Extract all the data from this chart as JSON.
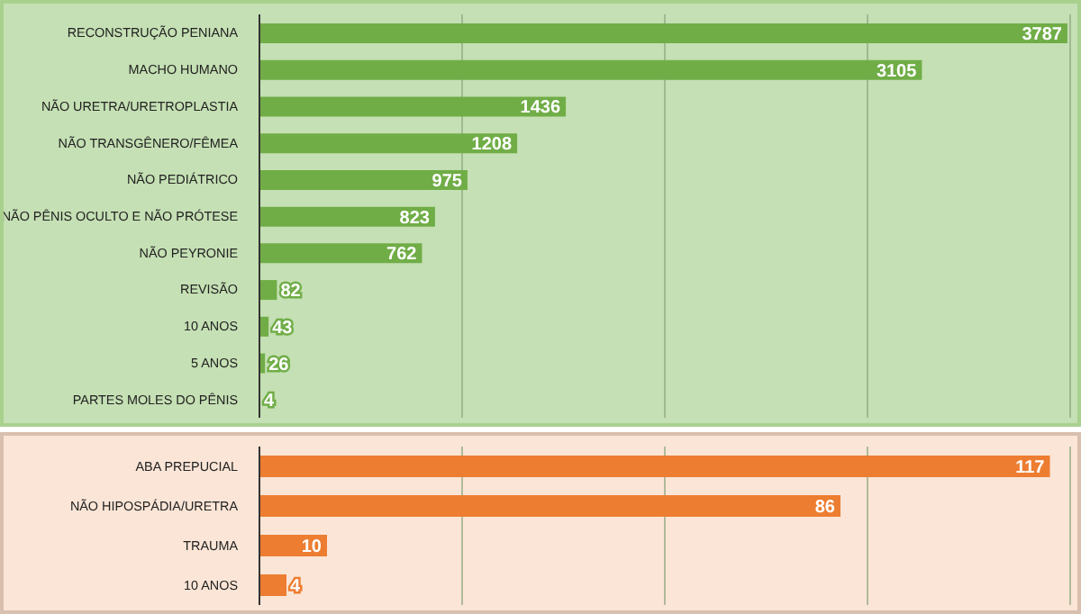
{
  "chart_data": [
    {
      "type": "bar",
      "orientation": "horizontal",
      "categories": [
        "RECONSTRUÇÃO PENIANA",
        "MACHO HUMANO",
        "NÃO URETRA/URETROPLASTIA",
        "NÃO TRANSGÊNERO/FÊMEA",
        "NÃO PEDIÁTRICO",
        "NÃO PÊNIS OCULTO E NÃO PRÓTESE",
        "NÃO PEYRONIE",
        "REVISÃO",
        "10 ANOS",
        "5 ANOS",
        "PARTES MOLES DO PÊNIS"
      ],
      "values": [
        3787,
        3105,
        1436,
        1208,
        975,
        823,
        762,
        82,
        43,
        26,
        4
      ],
      "color": "#70ad47",
      "grid": "x",
      "tick_labels": "y",
      "data_labels": true
    },
    {
      "type": "bar",
      "orientation": "horizontal",
      "categories": [
        "ABA PREPUCIAL",
        "NÃO HIPOSPÁDIA/URETRA",
        "TRAUMA",
        "10 ANOS"
      ],
      "values": [
        117,
        86,
        10,
        4
      ],
      "color": "#ed7d31",
      "grid": "x",
      "tick_labels": "y",
      "data_labels": true
    }
  ]
}
